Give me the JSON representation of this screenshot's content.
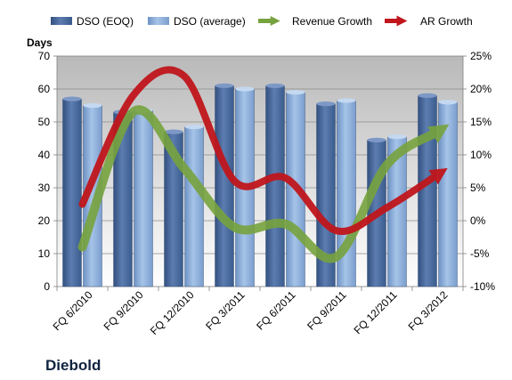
{
  "company": "Diebold",
  "chart_data": {
    "type": "bar",
    "categories": [
      "FQ 6/2010",
      "FQ 9/2010",
      "FQ 12/2010",
      "FQ 3/2011",
      "FQ 6/2011",
      "FQ 9/2011",
      "FQ 12/2011",
      "FQ 3/2012"
    ],
    "series": [
      {
        "name": "DSO (EOQ)",
        "kind": "bar",
        "axis": "left",
        "color": "#4f6fa3",
        "values": [
          57,
          53,
          47,
          61,
          61,
          55.5,
          44.5,
          58
        ]
      },
      {
        "name": "DSO (average)",
        "kind": "bar",
        "axis": "left",
        "color": "#8fb2dc",
        "values": [
          55,
          53.5,
          48.5,
          60,
          59,
          56.5,
          45.5,
          56
        ]
      },
      {
        "name": "Revenue Growth",
        "kind": "line",
        "axis": "right",
        "color": "#77a33e",
        "values": [
          -4,
          16.5,
          8,
          -1,
          -0.5,
          -5.5,
          8.5,
          13.5
        ]
      },
      {
        "name": "AR Growth",
        "kind": "line",
        "axis": "right",
        "color": "#c0161c",
        "values": [
          2.5,
          19,
          22,
          6,
          6.5,
          -1.5,
          2,
          7
        ]
      }
    ],
    "ylabel": "Days",
    "ylim": [
      0,
      70
    ],
    "yticks": [
      "0",
      "10",
      "20",
      "30",
      "40",
      "50",
      "60",
      "70"
    ],
    "y2lim": [
      -10,
      25
    ],
    "y2ticks": [
      "-10%",
      "-5%",
      "0%",
      "5%",
      "10%",
      "15%",
      "20%",
      "25%"
    ],
    "grid": true,
    "legend_position": "top"
  }
}
